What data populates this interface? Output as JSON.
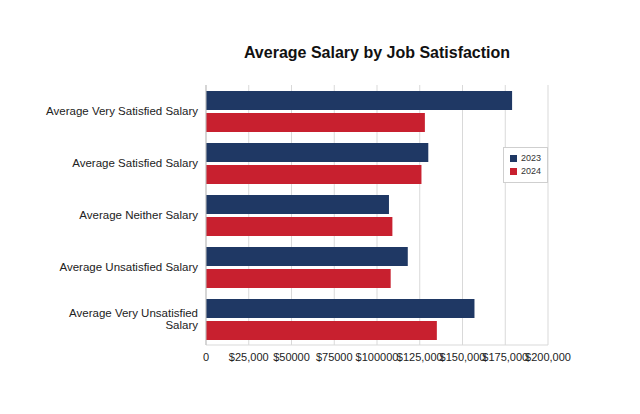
{
  "chart_data": {
    "type": "bar",
    "title": "Average Salary by Job Satisfaction",
    "orientation": "horizontal",
    "categories": [
      "Average Very Satisfied Salary",
      "Average Satisfied Salary",
      "Average Neither Salary",
      "Average Unsatisfied Salary",
      "Average Very Unsatisfied Salary"
    ],
    "series": [
      {
        "name": "2023",
        "color": "#1f3864",
        "values": [
          179000,
          130000,
          107000,
          118000,
          157000
        ]
      },
      {
        "name": "2024",
        "color": "#c8202f",
        "values": [
          128000,
          126000,
          109000,
          108000,
          135000
        ]
      }
    ],
    "xlim": [
      0,
      200000
    ],
    "xticks": [
      0,
      {
        "value": 25000,
        "label": "$25,000"
      },
      {
        "value": 50000,
        "label": "$50000"
      },
      {
        "value": 75000,
        "label": "$75000"
      },
      {
        "value": 100000,
        "label": "$100000"
      },
      {
        "value": 125000,
        "label": "$125,000"
      },
      {
        "value": 150000,
        "label": "$150,000"
      },
      {
        "value": 175000,
        "label": "$175,000"
      },
      {
        "value": 200000,
        "label": "$200,000"
      }
    ],
    "grid": true,
    "legend": "right"
  }
}
